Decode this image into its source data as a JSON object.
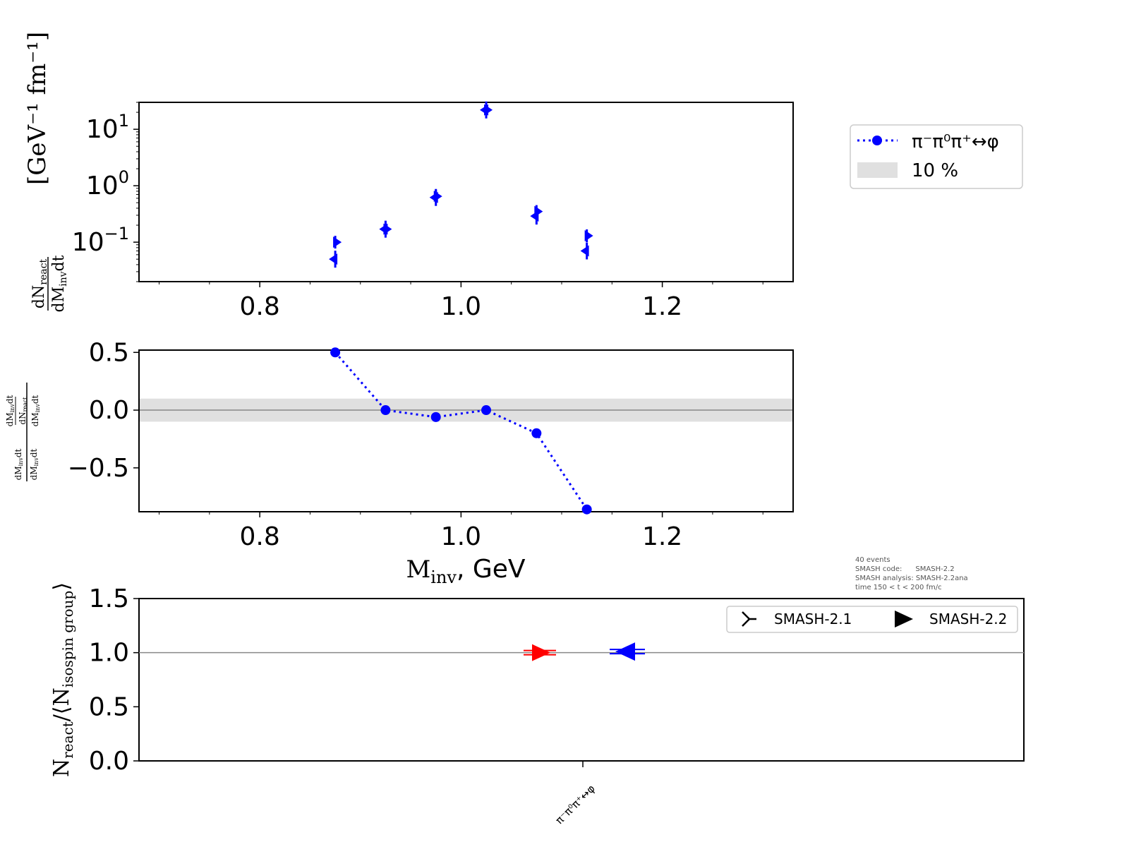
{
  "chart_data": [
    {
      "type": "scatter",
      "yscale": "log",
      "xlim": [
        0.68,
        1.33
      ],
      "ylim": [
        0.02,
        30
      ],
      "x_ticks": [
        "0.8",
        "1.0",
        "1.2"
      ],
      "ylabel_unit": "[GeV⁻¹ fm⁻¹]",
      "series": [
        {
          "version": "SMASH-2.1",
          "x": [
            0.875,
            0.925,
            0.975,
            1.025,
            1.075,
            1.125
          ],
          "y": [
            0.1,
            0.17,
            0.65,
            22,
            0.35,
            0.13
          ]
        },
        {
          "version": "SMASH-2.2",
          "x": [
            0.875,
            0.925,
            0.975,
            1.025,
            1.075,
            1.125
          ],
          "y": [
            0.05,
            0.17,
            0.62,
            22,
            0.29,
            0.07
          ]
        }
      ]
    },
    {
      "type": "line",
      "xlim": [
        0.68,
        1.33
      ],
      "ylim": [
        -0.88,
        0.52
      ],
      "x_ticks": [
        "0.8",
        "1.0",
        "1.2"
      ],
      "y_ticks": [
        "0.5",
        "0.0",
        "−0.5"
      ],
      "band": [
        -0.1,
        0.1
      ],
      "xlabel_unit": ", GeV",
      "series": [
        {
          "name": "π⁻π⁰π⁺↔φ",
          "x": [
            0.875,
            0.925,
            0.975,
            1.025,
            1.075,
            1.125
          ],
          "y": [
            0.5,
            0.0,
            -0.06,
            0.0,
            -0.2,
            -0.86
          ]
        }
      ]
    },
    {
      "type": "scatter",
      "ylim": [
        0.0,
        1.5
      ],
      "y_ticks": [
        "1.5",
        "1.0",
        "0.5",
        "0.0"
      ],
      "categories": [
        "π⁻π⁰π⁺↔φ"
      ],
      "series": [
        {
          "name": "SMASH-2.1",
          "values": [
            1.0
          ],
          "color": "#ff0000"
        },
        {
          "name": "SMASH-2.2",
          "values": [
            1.01
          ],
          "color": "#0000ff"
        }
      ]
    }
  ],
  "legend_top": {
    "series_label": "π⁻π⁰π⁺↔φ",
    "band_label": "10 %"
  },
  "legend_bottom": {
    "items": [
      "SMASH-2.1",
      "SMASH-2.2"
    ]
  },
  "info_text": [
    "40 events",
    "SMASH code:      SMASH-2.2",
    "SMASH analysis: SMASH-2.2ana",
    "time 150 < t < 200 fm/c"
  ],
  "colors": {
    "series": "#0000ff",
    "band": "#e0e0e0",
    "ref2_1": "#ff0000",
    "ref2_2": "#0000ff"
  }
}
